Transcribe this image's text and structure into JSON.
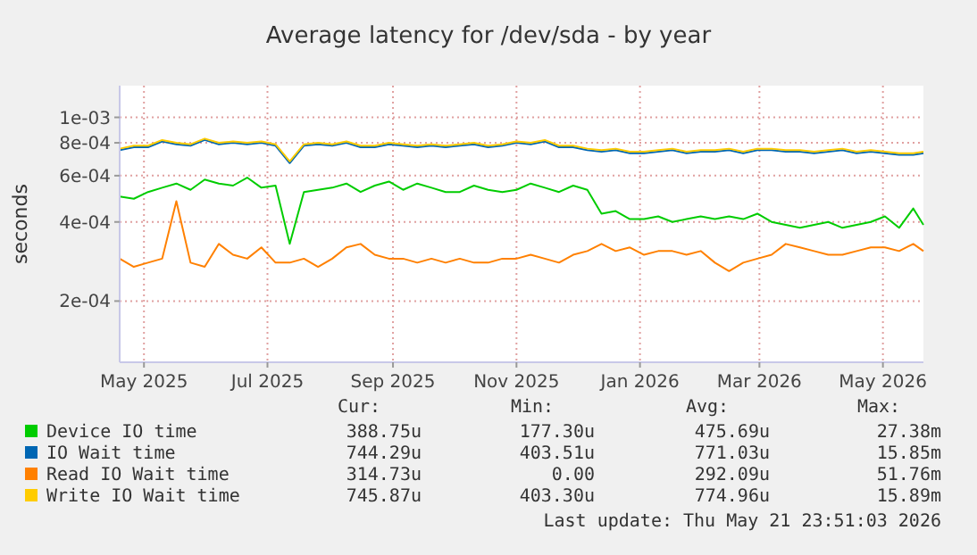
{
  "chart_data": {
    "type": "line",
    "title": "Average latency for /dev/sda - by year",
    "ylabel": "seconds",
    "log": "y",
    "grid": true,
    "legend": "bottom",
    "line_style": "solid",
    "x": [
      "2025-04-19",
      "2025-04-26",
      "2025-05-03",
      "2025-05-10",
      "2025-05-17",
      "2025-05-24",
      "2025-05-31",
      "2025-06-07",
      "2025-06-14",
      "2025-06-21",
      "2025-06-28",
      "2025-07-05",
      "2025-07-12",
      "2025-07-19",
      "2025-07-26",
      "2025-08-02",
      "2025-08-09",
      "2025-08-16",
      "2025-08-23",
      "2025-08-30",
      "2025-09-06",
      "2025-09-13",
      "2025-09-20",
      "2025-09-27",
      "2025-10-04",
      "2025-10-11",
      "2025-10-18",
      "2025-10-25",
      "2025-11-01",
      "2025-11-08",
      "2025-11-15",
      "2025-11-22",
      "2025-11-29",
      "2025-12-06",
      "2025-12-13",
      "2025-12-20",
      "2025-12-27",
      "2026-01-03",
      "2026-01-10",
      "2026-01-17",
      "2026-01-24",
      "2026-01-31",
      "2026-02-07",
      "2026-02-14",
      "2026-02-21",
      "2026-02-28",
      "2026-03-07",
      "2026-03-14",
      "2026-03-21",
      "2026-03-28",
      "2026-04-04",
      "2026-04-11",
      "2026-04-18",
      "2026-04-25",
      "2026-05-02",
      "2026-05-09",
      "2026-05-16",
      "2026-05-21"
    ],
    "xlim": [
      "2025-04-19",
      "2026-05-21"
    ],
    "xticks": [
      {
        "value": "2025-05-01",
        "label": "May 2025"
      },
      {
        "value": "2025-07-01",
        "label": "Jul 2025"
      },
      {
        "value": "2025-09-01",
        "label": "Sep 2025"
      },
      {
        "value": "2025-11-01",
        "label": "Nov 2025"
      },
      {
        "value": "2026-01-01",
        "label": "Jan 2026"
      },
      {
        "value": "2026-03-01",
        "label": "Mar 2026"
      },
      {
        "value": "2026-05-01",
        "label": "May 2026"
      }
    ],
    "ylim": [
      0.000117,
      0.00132
    ],
    "yticks": [
      {
        "value": 0.0002,
        "label": "2e-04"
      },
      {
        "value": 0.0004,
        "label": "4e-04"
      },
      {
        "value": 0.0006,
        "label": "6e-04"
      },
      {
        "value": 0.0008,
        "label": "8e-04"
      },
      {
        "value": 0.001,
        "label": "1e-03"
      }
    ],
    "series": [
      {
        "name": "Device IO time",
        "color": "#00cc00",
        "values": [
          0.0005,
          0.00049,
          0.00052,
          0.00054,
          0.00056,
          0.00053,
          0.00058,
          0.00056,
          0.00055,
          0.00059,
          0.00054,
          0.00055,
          0.00033,
          0.00052,
          0.00053,
          0.00054,
          0.00056,
          0.00052,
          0.00055,
          0.00057,
          0.00053,
          0.00056,
          0.00054,
          0.00052,
          0.00052,
          0.00055,
          0.00053,
          0.00052,
          0.00053,
          0.00056,
          0.00054,
          0.00052,
          0.00055,
          0.00053,
          0.00043,
          0.00044,
          0.00041,
          0.00041,
          0.00042,
          0.0004,
          0.00041,
          0.00042,
          0.00041,
          0.00042,
          0.00041,
          0.00043,
          0.0004,
          0.00039,
          0.00038,
          0.00039,
          0.0004,
          0.00038,
          0.00039,
          0.0004,
          0.00042,
          0.00038,
          0.00045,
          0.00039
        ]
      },
      {
        "name": "IO Wait time",
        "color": "#0066b3",
        "values": [
          0.00075,
          0.00077,
          0.00077,
          0.00081,
          0.00079,
          0.00078,
          0.00082,
          0.00079,
          0.0008,
          0.00079,
          0.0008,
          0.00078,
          0.00067,
          0.00078,
          0.00079,
          0.00078,
          0.0008,
          0.00077,
          0.00077,
          0.00079,
          0.00078,
          0.00077,
          0.00078,
          0.00077,
          0.00078,
          0.00079,
          0.00077,
          0.00078,
          0.0008,
          0.00079,
          0.00081,
          0.00077,
          0.00077,
          0.00075,
          0.00074,
          0.00075,
          0.00073,
          0.00073,
          0.00074,
          0.00075,
          0.00073,
          0.00074,
          0.00074,
          0.00075,
          0.00073,
          0.00075,
          0.00075,
          0.00074,
          0.00074,
          0.00073,
          0.00074,
          0.00075,
          0.00073,
          0.00074,
          0.00073,
          0.00072,
          0.00072,
          0.00073
        ]
      },
      {
        "name": "Read IO Wait time",
        "color": "#ff8000",
        "values": [
          0.00029,
          0.00027,
          0.00028,
          0.00029,
          0.00048,
          0.00028,
          0.00027,
          0.00033,
          0.0003,
          0.00029,
          0.00032,
          0.00028,
          0.00028,
          0.00029,
          0.00027,
          0.00029,
          0.00032,
          0.00033,
          0.0003,
          0.00029,
          0.00029,
          0.00028,
          0.00029,
          0.00028,
          0.00029,
          0.00028,
          0.00028,
          0.00029,
          0.00029,
          0.0003,
          0.00029,
          0.00028,
          0.0003,
          0.00031,
          0.00033,
          0.00031,
          0.00032,
          0.0003,
          0.00031,
          0.00031,
          0.0003,
          0.00031,
          0.00028,
          0.00026,
          0.00028,
          0.00029,
          0.0003,
          0.00033,
          0.00032,
          0.00031,
          0.0003,
          0.0003,
          0.00031,
          0.00032,
          0.00032,
          0.00031,
          0.00033,
          0.00031
        ]
      },
      {
        "name": "Write IO Wait time",
        "color": "#ffcc00",
        "values": [
          0.00076,
          0.00078,
          0.00078,
          0.00082,
          0.0008,
          0.00079,
          0.00083,
          0.0008,
          0.00081,
          0.0008,
          0.00081,
          0.00079,
          0.00068,
          0.00079,
          0.0008,
          0.00079,
          0.00081,
          0.00078,
          0.00078,
          0.0008,
          0.00079,
          0.00078,
          0.00079,
          0.00078,
          0.00079,
          0.0008,
          0.00078,
          0.00079,
          0.00081,
          0.0008,
          0.00082,
          0.00078,
          0.00078,
          0.00076,
          0.00075,
          0.00076,
          0.00074,
          0.00074,
          0.00075,
          0.00076,
          0.00074,
          0.00075,
          0.00075,
          0.00076,
          0.00074,
          0.00076,
          0.00076,
          0.00075,
          0.00075,
          0.00074,
          0.00075,
          0.00076,
          0.00074,
          0.00075,
          0.00074,
          0.00073,
          0.00073,
          0.00074
        ]
      }
    ],
    "annotations": [
      "Cur:",
      "Min:",
      "Avg:",
      "Max:",
      "388.75u",
      "177.30u",
      "475.69u",
      "27.38m",
      "744.29u",
      "403.51u",
      "771.03u",
      "15.85m",
      "314.73u",
      "0.00",
      "292.09u",
      "51.76m",
      "745.87u",
      "403.30u",
      "774.96u",
      "15.89m",
      "Last update: Thu May 21 23:51:03 2026"
    ]
  }
}
